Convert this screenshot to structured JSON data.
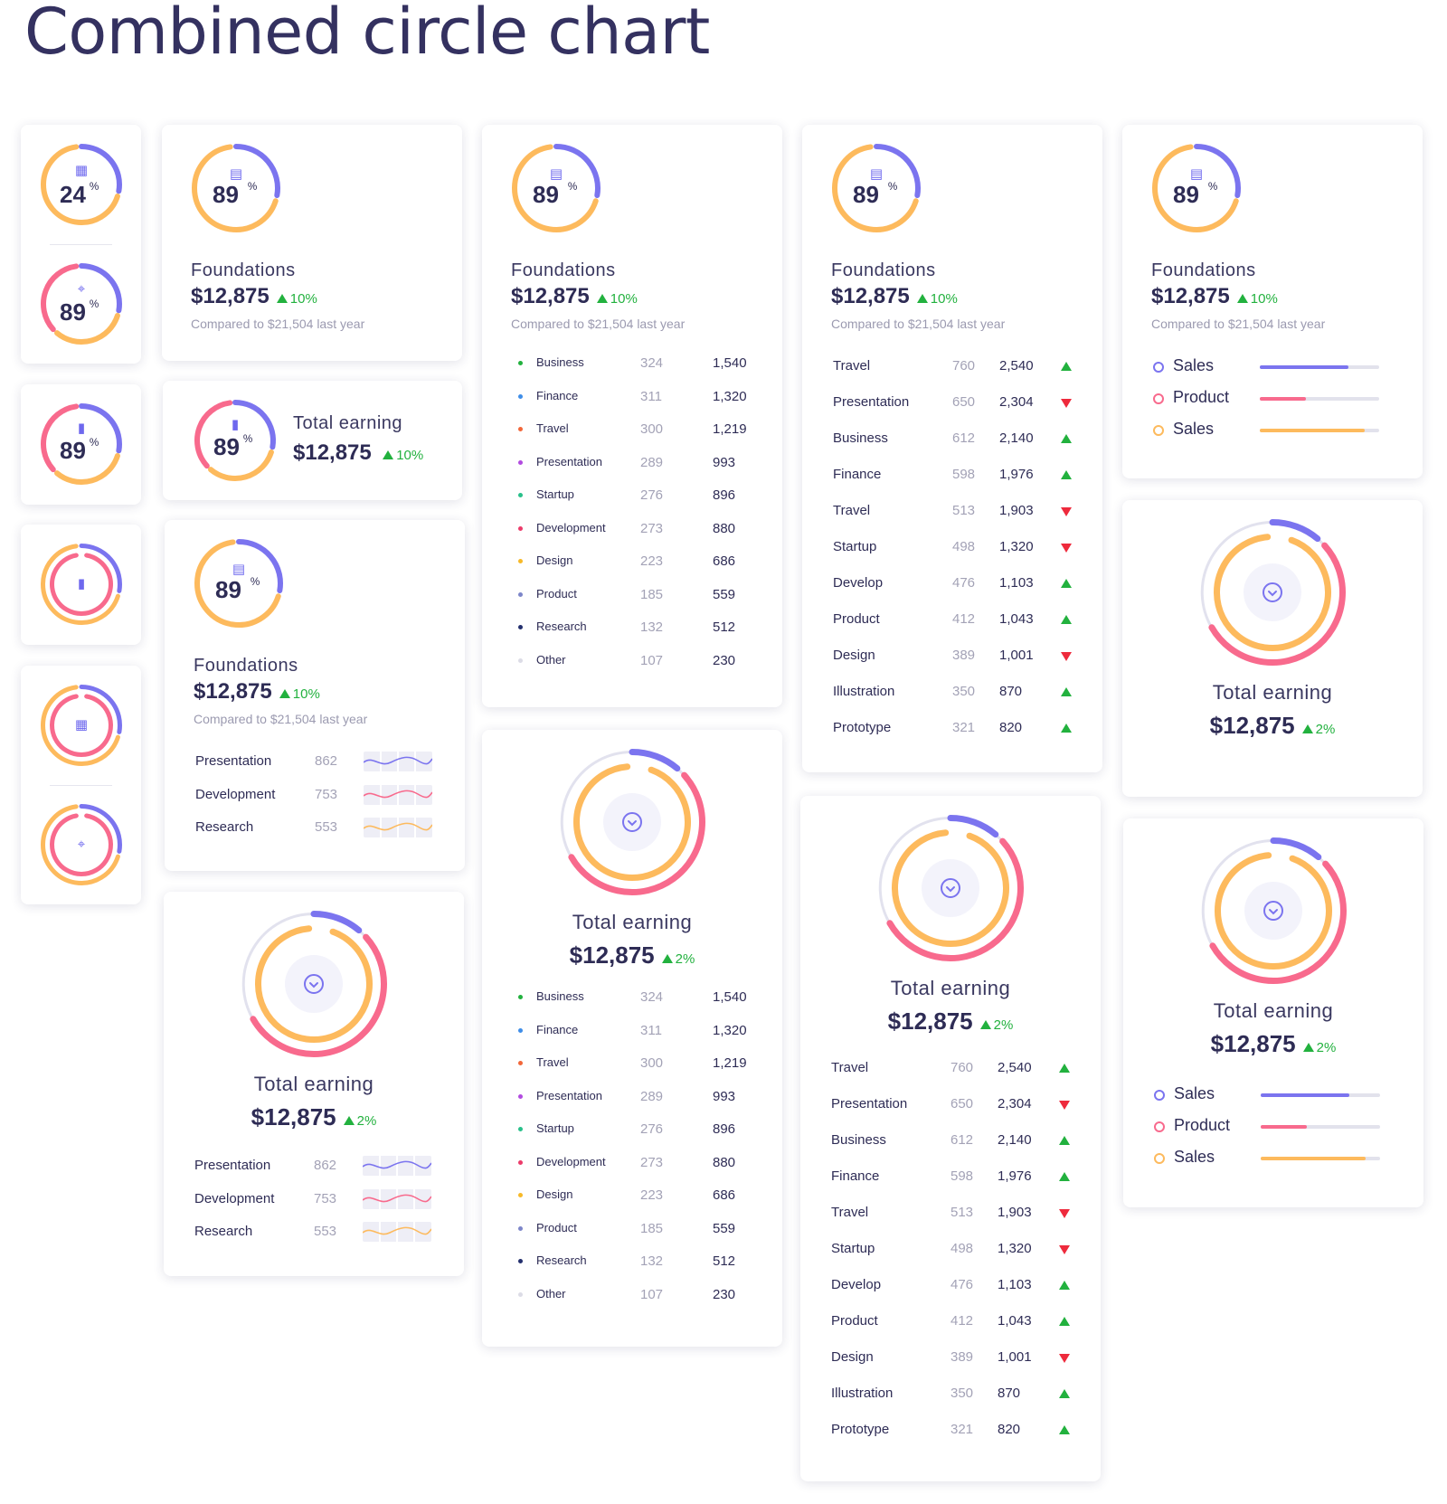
{
  "page": {
    "title": "Combined circle chart"
  },
  "colors": {
    "purple": "#7b74ef",
    "orange": "#fdba5d",
    "pink": "#f86a8d",
    "track": "#e2e2ee",
    "up": "#22b13e",
    "down": "#ee2a3c"
  },
  "small": {
    "a_top_value": "24",
    "a_bottom_value": "89",
    "b_value": "89",
    "pct": "%",
    "icons": [
      "calendar-icon",
      "map-pin-icon",
      "bar-chart-icon",
      "bar-chart-icon",
      "calendar-icon",
      "map-pin-icon"
    ]
  },
  "foundations": {
    "title": "Foundations",
    "value": "89",
    "pct": "%",
    "amount": "$12,875",
    "delta": "10%",
    "compare": "Compared to $21,504 last year"
  },
  "total_small": {
    "title": "Total earning",
    "amount": "$12,875",
    "delta": "10%",
    "value": "89",
    "pct": "%"
  },
  "total_earning": {
    "title": "Total earning",
    "amount": "$12,875",
    "delta": "2%"
  },
  "dot_table": [
    {
      "name": "Business",
      "a": "324",
      "b": "1,540",
      "color": "#22b13e"
    },
    {
      "name": "Finance",
      "a": "311",
      "b": "1,320",
      "color": "#3f8ee8"
    },
    {
      "name": "Travel",
      "a": "300",
      "b": "1,219",
      "color": "#f2673a"
    },
    {
      "name": "Presentation",
      "a": "289",
      "b": "993",
      "color": "#b24be0"
    },
    {
      "name": "Startup",
      "a": "276",
      "b": "896",
      "color": "#29c08a"
    },
    {
      "name": "Development",
      "a": "273",
      "b": "880",
      "color": "#ec3b6a"
    },
    {
      "name": "Design",
      "a": "223",
      "b": "686",
      "color": "#f7b928"
    },
    {
      "name": "Product",
      "a": "185",
      "b": "559",
      "color": "#7d86c9"
    },
    {
      "name": "Research",
      "a": "132",
      "b": "512",
      "color": "#24306e"
    },
    {
      "name": "Other",
      "a": "107",
      "b": "230",
      "color": "#dcdce6"
    }
  ],
  "trend_table": [
    {
      "name": "Travel",
      "a": "760",
      "b": "2,540",
      "trend": "up"
    },
    {
      "name": "Presentation",
      "a": "650",
      "b": "2,304",
      "trend": "down"
    },
    {
      "name": "Business",
      "a": "612",
      "b": "2,140",
      "trend": "up"
    },
    {
      "name": "Finance",
      "a": "598",
      "b": "1,976",
      "trend": "up"
    },
    {
      "name": "Travel",
      "a": "513",
      "b": "1,903",
      "trend": "down"
    },
    {
      "name": "Startup",
      "a": "498",
      "b": "1,320",
      "trend": "down"
    },
    {
      "name": "Develop",
      "a": "476",
      "b": "1,103",
      "trend": "up"
    },
    {
      "name": "Product",
      "a": "412",
      "b": "1,043",
      "trend": "up"
    },
    {
      "name": "Design",
      "a": "389",
      "b": "1,001",
      "trend": "down"
    },
    {
      "name": "Illustration",
      "a": "350",
      "b": "870",
      "trend": "up"
    },
    {
      "name": "Prototype",
      "a": "321",
      "b": "820",
      "trend": "up"
    }
  ],
  "spark_table": [
    {
      "name": "Presentation",
      "value": "862",
      "color": "#7b74ef"
    },
    {
      "name": "Development",
      "value": "753",
      "color": "#f86a8d"
    },
    {
      "name": "Research",
      "value": "553",
      "color": "#fdba5d"
    }
  ],
  "legend": [
    {
      "name": "Sales",
      "color": "#7b74ef",
      "level": 0.74
    },
    {
      "name": "Product",
      "color": "#f86a8d",
      "level": 0.39
    },
    {
      "name": "Sales",
      "color": "#fdba5d",
      "level": 0.88
    }
  ]
}
